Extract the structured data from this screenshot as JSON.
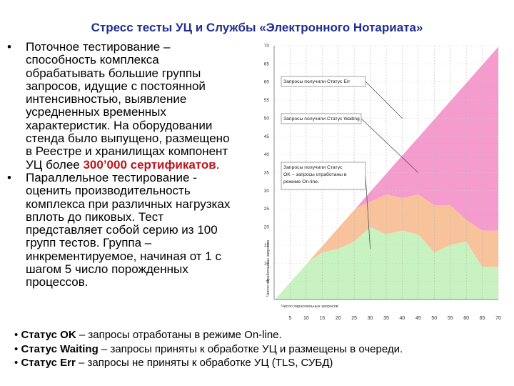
{
  "slide": {
    "title": "Стресс тесты УЦ и Службы «Электронного Нотариата»"
  },
  "bullets": [
    {
      "text_before": "Поточное тестирование –\nспособность комплекса\nобрабатывать большие группы\nзапросов, идущие с постоянной\nинтенсивностью, выявление\nусредненных временных\nхарактеристик. На оборудовании\nстенда было выпущено, размещено\nв Реестре и хранилищах компонент\nУЦ более ",
      "highlight": "300’000 сертификатов",
      "text_after": "."
    },
    {
      "text_before": "Параллельное тестирование -\nоценить производительность\nкомплекса при различных нагрузках\nвплоть до пиковых. Тест\nпредставляет собой серию из 100\nгрупп тестов. Группа –\nинкрементируемое, начиная от 1 с\nшагом 5 число порожденных\nпроцессов.",
      "highlight": "",
      "text_after": ""
    }
  ],
  "status_lines": [
    {
      "bullet": "•",
      "term": "Статус OK",
      "desc": " – запросы отработаны в режиме On-line."
    },
    {
      "bullet": "•",
      "term": "Статус Waiting",
      "desc": " – запросы приняты к обработке УЦ и размещены в очереди."
    },
    {
      "bullet": "•",
      "term": "Статус Err",
      "desc": " – запросы не приняты к обработке УЦ (TLS, СУБД)"
    }
  ],
  "chart_data": {
    "type": "area",
    "stacked": true,
    "x": [
      0,
      5,
      10,
      15,
      20,
      25,
      30,
      35,
      40,
      45,
      50,
      55,
      60,
      65,
      70
    ],
    "x_tick_labels": [
      "5",
      "10",
      "15",
      "20",
      "25",
      "30",
      "35",
      "40",
      "45",
      "50",
      "55",
      "60",
      "65",
      "70"
    ],
    "xlabel": "Число параллельных запросов",
    "ylabel": "Число обработанных запросов",
    "ylim": [
      0,
      70
    ],
    "y_ticks": [
      5,
      10,
      15,
      20,
      25,
      30,
      35,
      40,
      45,
      50,
      55,
      60,
      65,
      70
    ],
    "series": [
      {
        "name": "OK",
        "color": "#c8f2c0",
        "values": [
          0,
          5,
          10,
          13,
          14,
          16,
          20,
          18,
          19,
          18,
          13,
          15,
          16,
          9,
          9
        ]
      },
      {
        "name": "Waiting",
        "color": "#f8c39b",
        "values": [
          0,
          0,
          0,
          2,
          6,
          9,
          7,
          11,
          9,
          11,
          13,
          11,
          6,
          10,
          10
        ]
      },
      {
        "name": "Err",
        "color": "#f59bcd",
        "values": [
          0,
          0,
          0,
          0,
          0,
          0,
          3,
          6,
          12,
          16,
          24,
          29,
          38,
          46,
          51
        ]
      }
    ],
    "total_line": {
      "color": "#ffffff",
      "values": [
        0,
        5,
        10,
        15,
        20,
        25,
        30,
        35,
        40,
        45,
        50,
        55,
        60,
        65,
        70
      ]
    },
    "annotations": [
      {
        "text": "Запросы получили Статус Err",
        "series": "Err"
      },
      {
        "text": "Запросы получили Статус Waiting",
        "series": "Waiting"
      },
      {
        "text": "Запросы получили Статус OK – запросы отработаны в режиме On-line.",
        "series": "OK"
      }
    ],
    "grid": true,
    "legend": "annotations-left"
  }
}
